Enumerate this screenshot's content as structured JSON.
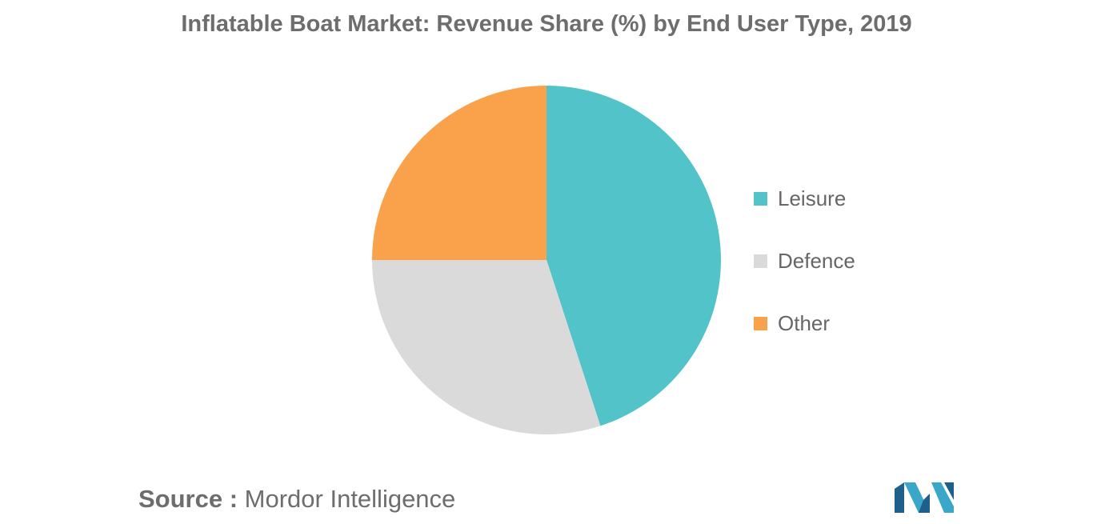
{
  "chart_data": {
    "type": "pie",
    "title": "Inflatable Boat Market: Revenue Share (%) by End User Type, 2019",
    "categories": [
      "Leisure",
      "Defence",
      "Other"
    ],
    "values": [
      45,
      30,
      25
    ],
    "colors": [
      "#52c4c9",
      "#dadada",
      "#f9a14b"
    ],
    "start": "top, clockwise",
    "legend_position": "right"
  },
  "source": {
    "label": "Source :",
    "text": "Mordor Intelligence"
  }
}
